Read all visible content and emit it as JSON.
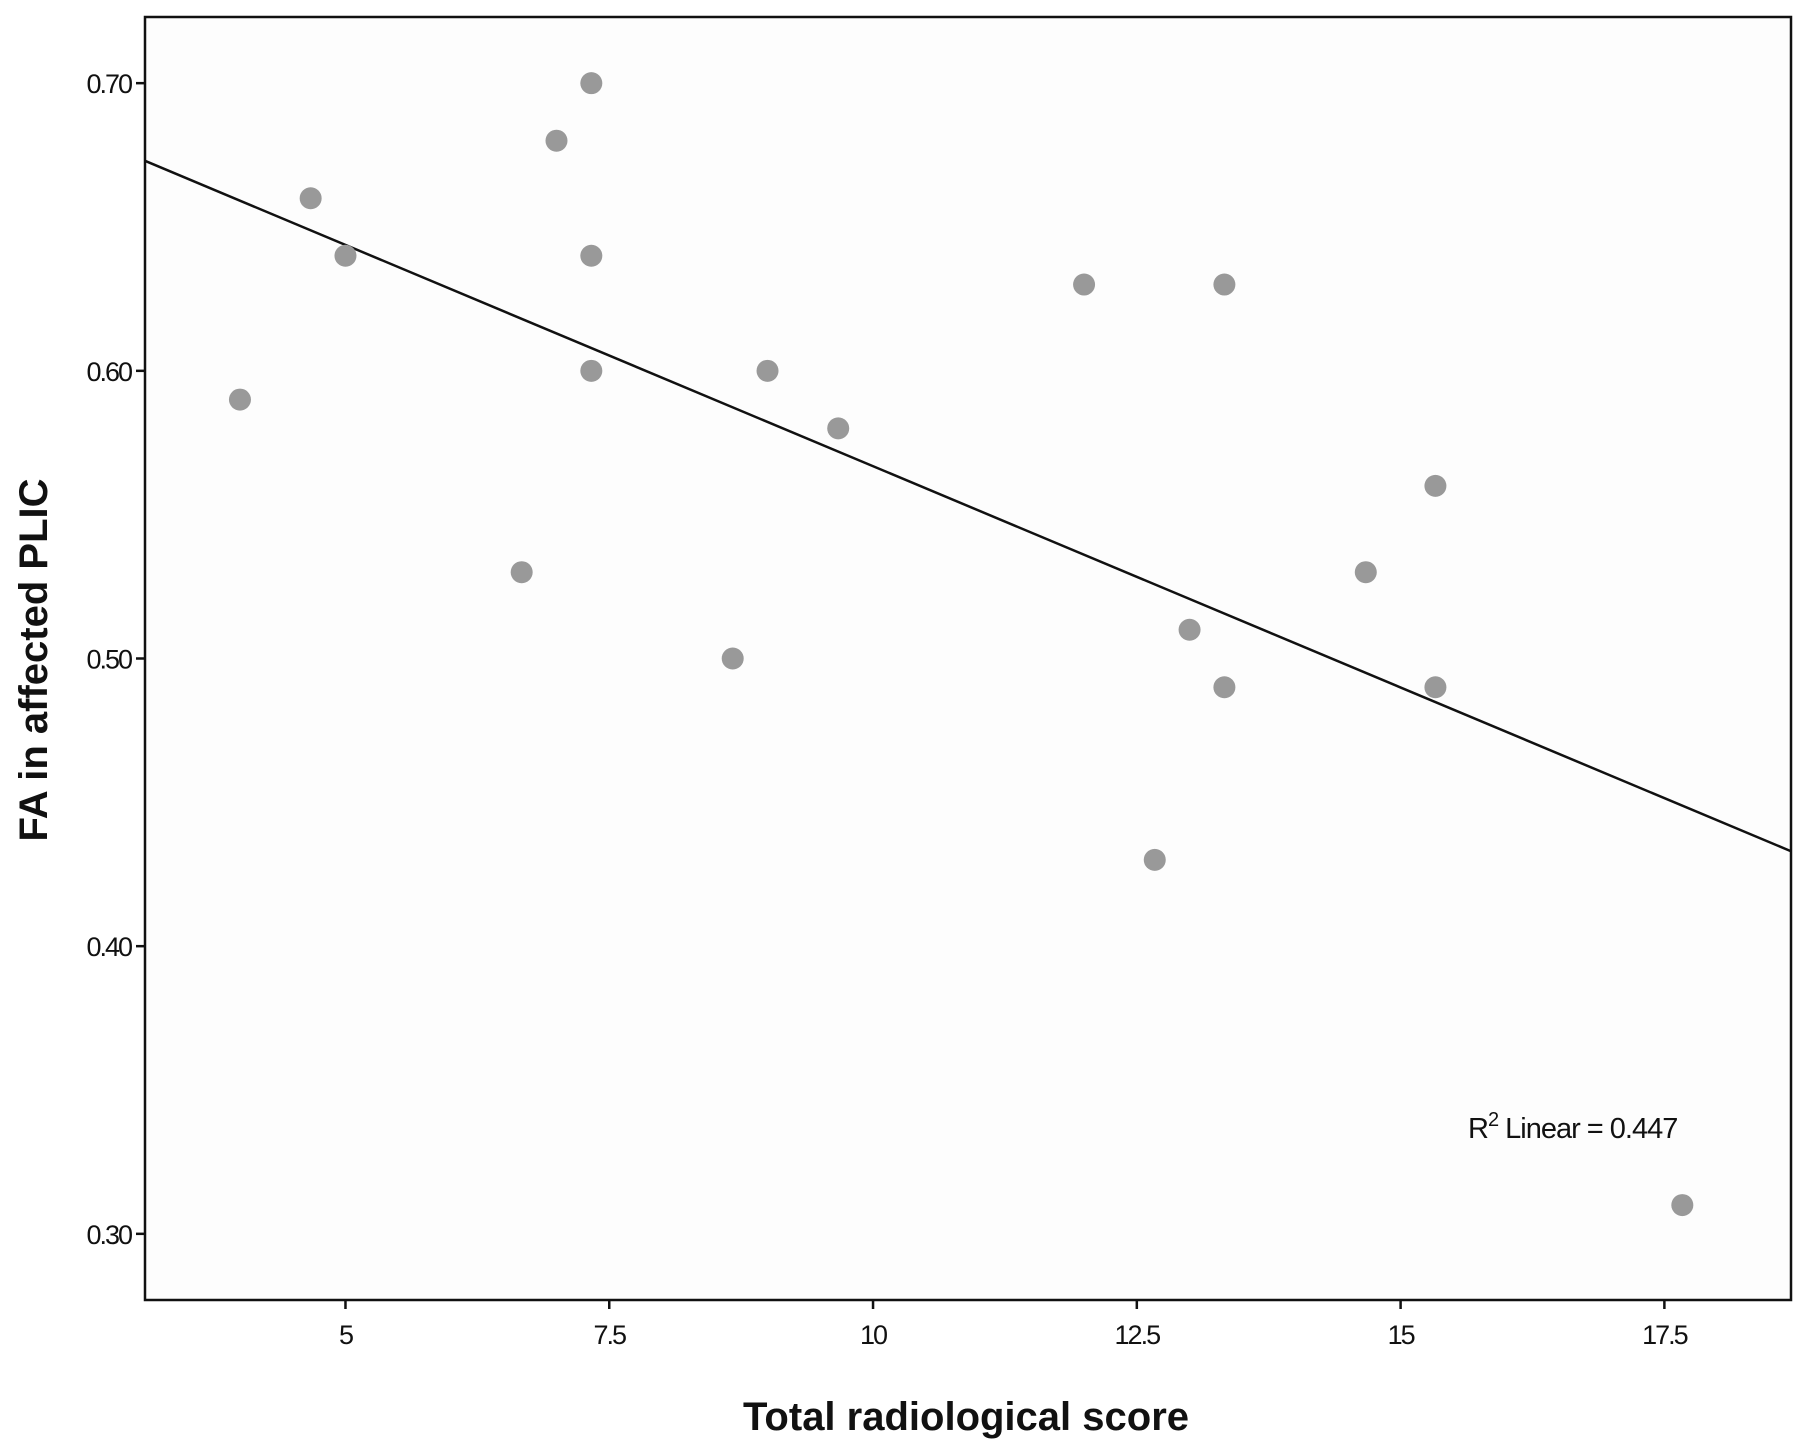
{
  "chart_data": {
    "type": "scatter",
    "xlabel": "Total radiological score",
    "ylabel": "FA in affected PLIC",
    "xlim": [
      3.1,
      18.7
    ],
    "ylim": [
      0.277,
      0.723
    ],
    "x_ticks": [
      5,
      7.5,
      10,
      12.5,
      15,
      17.5
    ],
    "x_tick_labels": [
      "5",
      "7.5",
      "10",
      "12.5",
      "15",
      "17.5"
    ],
    "y_ticks": [
      0.3,
      0.4,
      0.5,
      0.6,
      0.7
    ],
    "y_tick_labels": [
      "0.30",
      "0.40",
      "0.50",
      "0.60",
      "0.70"
    ],
    "grid": false,
    "legend": "none",
    "points_color": "#999999",
    "background_color": "#fdfdfd",
    "points": [
      {
        "x": 4.0,
        "y": 0.59
      },
      {
        "x": 4.67,
        "y": 0.66
      },
      {
        "x": 5.0,
        "y": 0.64
      },
      {
        "x": 6.67,
        "y": 0.53
      },
      {
        "x": 7.0,
        "y": 0.68
      },
      {
        "x": 7.33,
        "y": 0.7
      },
      {
        "x": 7.33,
        "y": 0.64
      },
      {
        "x": 7.33,
        "y": 0.6
      },
      {
        "x": 8.67,
        "y": 0.5
      },
      {
        "x": 9.0,
        "y": 0.6
      },
      {
        "x": 9.67,
        "y": 0.58
      },
      {
        "x": 12.0,
        "y": 0.63
      },
      {
        "x": 12.67,
        "y": 0.43
      },
      {
        "x": 13.0,
        "y": 0.51
      },
      {
        "x": 13.33,
        "y": 0.63
      },
      {
        "x": 13.33,
        "y": 0.49
      },
      {
        "x": 14.67,
        "y": 0.53
      },
      {
        "x": 15.33,
        "y": 0.56
      },
      {
        "x": 15.33,
        "y": 0.49
      },
      {
        "x": 17.67,
        "y": 0.31
      }
    ],
    "fit_line": {
      "type": "linear",
      "x": [
        3.1,
        18.7
      ],
      "y": [
        0.673,
        0.433
      ],
      "color": "#111111"
    },
    "annotation": {
      "prefix": "R",
      "superscript": "2",
      "text": " Linear = 0.447"
    }
  }
}
